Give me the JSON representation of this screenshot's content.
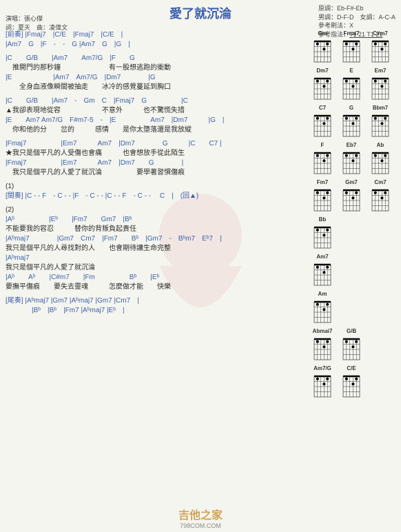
{
  "title": "愛了就沉淪",
  "info": {
    "singer_label": "演唱：",
    "singer": "張心傑",
    "lyric_label": "詞：",
    "lyricist": "夏天",
    "music_label": "曲：",
    "composer": "凌偉文",
    "orig_key_label": "原調：",
    "orig_key": "Eb-F#-Eb",
    "male_key_label": "男調：",
    "male_key": "D-F-D",
    "female_key_label": "女調：",
    "female_key": "A-C-A",
    "strum_label": "參考刷法：",
    "strum": "X",
    "pick_label": "參考指法：",
    "pick": "T1 21 T1 21"
  },
  "sections": {
    "intro_label": "[前奏]",
    "intro1": "|Fmaj7　|C/E　|Fmaj7　|C/E　|",
    "intro2": "|Am7　G　|F　-　-　G |Am7　G　|G　|",
    "v1c": "|C　　G/B　　|Am7　　Am7/G　|F　　G",
    "v1l": "　推開門的那秒鐘　　　　　　　有一股想逃跑的衝動",
    "v2c": "|E　　　　　　|Am7　Am7/G　|Dm7　　　　|G",
    "v2l": "　　全身血液像瞬間被抽走　　冰冷的感覺蔓延到胸口",
    "v3c": "|C　　G/B　　|Am7　-　Gm　C　|Fmaj7　G　　　　　|C",
    "v3l": "▲我卻表現地從容　　　　　　不意外　　　也不驚慌失措",
    "v4c": "|E　　Am7 Am7/G　F#m7-5　-　|E　　　　　Am7　|Dm7　　　|G　|",
    "v4l": "　你和他的分　　岔的　　　感情　　是你太墮落還是我放縱",
    "c1c": "|Fmaj7　　　　　|Em7　　　Am7　|Dm7　　　　G　　　|C　　C7 |",
    "c1l": "★我只是個平凡的人受傷也會痛　　　也會想放手從此陌生",
    "c2c": "|Fmaj7　　　　　|Em7　　　Am7　|Dm7　　G　　　　|",
    "c2l": "　我只是個平凡的人愛了就沉淪　　　　　要學著習慣傷痕",
    "num1": "(1)",
    "inter_label": "[間奏]",
    "inter": "|C - - F　- C - - |F　- C - - |C - - F　- C - - 　C　|　(回▲)",
    "num2": "(2)",
    "b1c": "|Aᵇ　　　　　|Eᵇ　　|Fm7　　Gm7　|Bᵇ",
    "b1l": "不能要我的容忍　　　替你的背叛負起責任",
    "b2c": "|Aᵇmaj7　　　　|Gm7　Cm7　|Fm7　　Bᵇ　|Gm7　-　Bᵇm7　Eᵇ7　|",
    "b2l": "我只是個平凡的人尋找對的人　　也會期待讓生命完整",
    "b3c": "|Aᵇmaj7",
    "b3l": "我只是個平凡的人愛了就沉淪",
    "b4c": "|Aᵇ　　Aᵇ　　|C#m7　　|Fm　　　　　Bᵇ　　|Eᵇ",
    "b4l": "要撫平傷痕　　要失去靈魂　　　怎麼做才能　　快樂",
    "outro_label": "[尾奏]",
    "outro1": "|Aᵇmaj7 |Gm7 |Aᵇmaj7 |Gm7 |Cm7　|",
    "outro2": "|Bᵇ　|Bᵇ　|Fm7 |Aᵇmaj7 |Eᵇ　|"
  },
  "chord_diagrams": [
    {
      "n": "Gm"
    },
    {
      "n": "Fmai7"
    },
    {
      "n": "C#m7"
    },
    {
      "n": "Dm7"
    },
    {
      "n": "E"
    },
    {
      "n": "Em7"
    },
    {
      "n": "C7"
    },
    {
      "n": "G"
    },
    {
      "n": "Bbm7"
    },
    {
      "n": "F"
    },
    {
      "n": "Eb7"
    },
    {
      "n": "Ab"
    },
    {
      "n": "Fm7"
    },
    {
      "n": "Gm7"
    },
    {
      "n": "Cm7"
    },
    {
      "n": "Bb"
    },
    {
      "n": ""
    },
    {
      "n": ""
    },
    {
      "n": "Am7"
    },
    {
      "n": ""
    },
    {
      "n": ""
    },
    {
      "n": "Am"
    },
    {
      "n": ""
    },
    {
      "n": ""
    },
    {
      "n": "Abmai7"
    },
    {
      "n": "G/B"
    },
    {
      "n": ""
    },
    {
      "n": "Am7/G"
    },
    {
      "n": "C/E"
    },
    {
      "n": ""
    }
  ],
  "brand": {
    "cn": "吉他之家",
    "en": "798COM.COM"
  },
  "colors": {
    "chord": "#3a5fb0",
    "text": "#2a2a2a",
    "brand": "#d4a050",
    "bg": "#f5f5f0"
  }
}
